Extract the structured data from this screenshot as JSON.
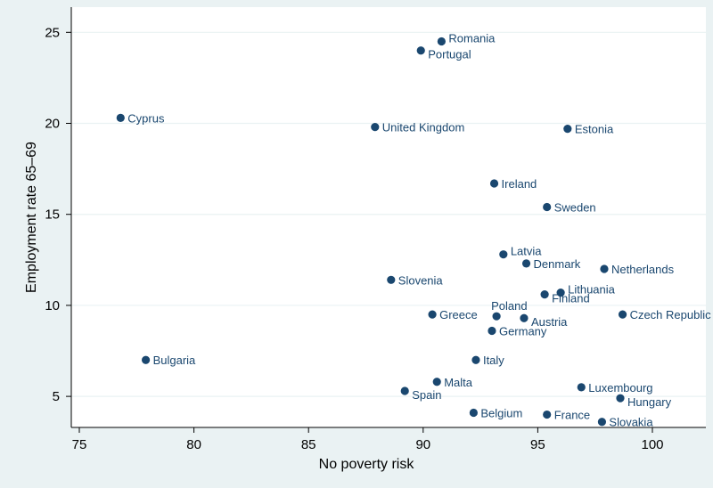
{
  "chart_data": {
    "type": "scatter",
    "xlabel": "No poverty risk",
    "ylabel": "Employment rate 65–69",
    "xlim": [
      75,
      100
    ],
    "ylim": [
      3,
      25.7
    ],
    "xticks": [
      75,
      80,
      85,
      90,
      95,
      100
    ],
    "yticks": [
      5,
      10,
      15,
      20,
      25
    ],
    "grid": true,
    "marker_color": "#1a476f",
    "points": [
      {
        "label": "Romania",
        "x": 90.8,
        "y": 24.5,
        "pos": "right-up"
      },
      {
        "label": "Portugal",
        "x": 89.9,
        "y": 24.0,
        "pos": "right-down"
      },
      {
        "label": "Cyprus",
        "x": 76.8,
        "y": 20.3,
        "pos": "right"
      },
      {
        "label": "United Kingdom",
        "x": 87.9,
        "y": 19.8,
        "pos": "right"
      },
      {
        "label": "Estonia",
        "x": 96.3,
        "y": 19.7,
        "pos": "right"
      },
      {
        "label": "Ireland",
        "x": 93.1,
        "y": 16.7,
        "pos": "right"
      },
      {
        "label": "Sweden",
        "x": 95.4,
        "y": 15.4,
        "pos": "right"
      },
      {
        "label": "Latvia",
        "x": 93.5,
        "y": 12.8,
        "pos": "right-up"
      },
      {
        "label": "Denmark",
        "x": 94.5,
        "y": 12.3,
        "pos": "right"
      },
      {
        "label": "Netherlands",
        "x": 97.9,
        "y": 12.0,
        "pos": "right"
      },
      {
        "label": "Slovenia",
        "x": 88.6,
        "y": 11.4,
        "pos": "right"
      },
      {
        "label": "Lithuania",
        "x": 96.0,
        "y": 10.7,
        "pos": "right-up"
      },
      {
        "label": "Finland",
        "x": 95.3,
        "y": 10.6,
        "pos": "right-down"
      },
      {
        "label": "Poland",
        "x": 93.2,
        "y": 9.4,
        "pos": "up"
      },
      {
        "label": "Greece",
        "x": 90.4,
        "y": 9.5,
        "pos": "right"
      },
      {
        "label": "Austria",
        "x": 94.4,
        "y": 9.3,
        "pos": "right-down"
      },
      {
        "label": "Czech Republic",
        "x": 98.7,
        "y": 9.5,
        "pos": "right"
      },
      {
        "label": "Germany",
        "x": 93.0,
        "y": 8.6,
        "pos": "right"
      },
      {
        "label": "Bulgaria",
        "x": 77.9,
        "y": 7.0,
        "pos": "right"
      },
      {
        "label": "Italy",
        "x": 92.3,
        "y": 7.0,
        "pos": "right"
      },
      {
        "label": "Malta",
        "x": 90.6,
        "y": 5.8,
        "pos": "right"
      },
      {
        "label": "Spain",
        "x": 89.2,
        "y": 5.3,
        "pos": "right-down"
      },
      {
        "label": "Luxembourg",
        "x": 96.9,
        "y": 5.5,
        "pos": "right"
      },
      {
        "label": "Hungary",
        "x": 98.6,
        "y": 4.9,
        "pos": "right-down"
      },
      {
        "label": "Belgium",
        "x": 92.2,
        "y": 4.1,
        "pos": "right"
      },
      {
        "label": "France",
        "x": 95.4,
        "y": 4.0,
        "pos": "right"
      },
      {
        "label": "Slovakia",
        "x": 97.8,
        "y": 3.6,
        "pos": "right"
      }
    ]
  }
}
